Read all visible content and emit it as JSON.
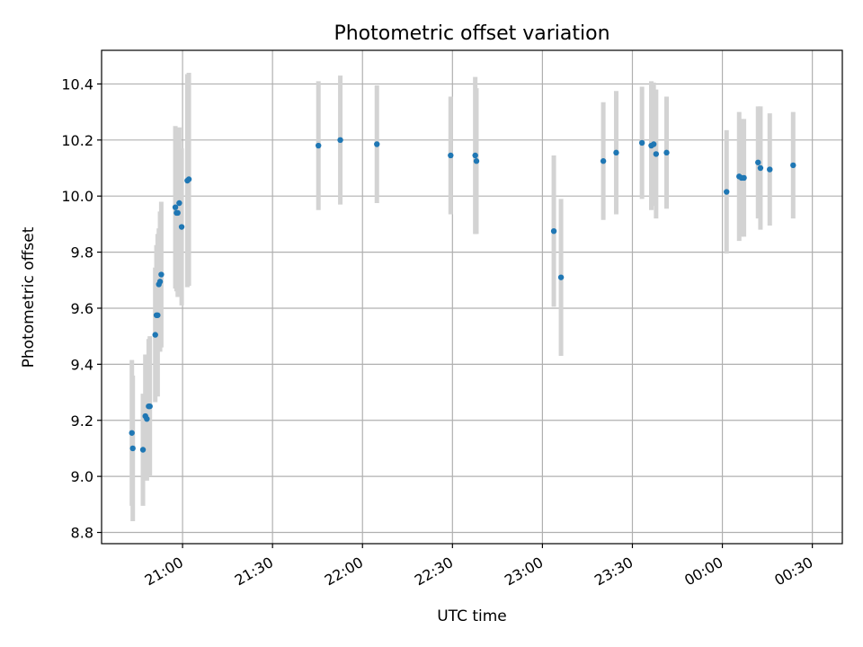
{
  "chart_data": {
    "type": "scatter",
    "title": "Photometric offset variation",
    "xlabel": "UTC time",
    "ylabel": "Photometric offset",
    "x_unit": "minutes_relative_to_21:00",
    "xlim": [
      -27,
      220
    ],
    "ylim": [
      8.76,
      10.52
    ],
    "grid": true,
    "x_ticks": [
      {
        "value": 0,
        "label": "21:00"
      },
      {
        "value": 30,
        "label": "21:30"
      },
      {
        "value": 60,
        "label": "22:00"
      },
      {
        "value": 90,
        "label": "22:30"
      },
      {
        "value": 120,
        "label": "23:00"
      },
      {
        "value": 150,
        "label": "23:30"
      },
      {
        "value": 180,
        "label": "00:00"
      },
      {
        "value": 210,
        "label": "00:30"
      }
    ],
    "y_ticks": [
      {
        "value": 8.8,
        "label": "8.8"
      },
      {
        "value": 9.0,
        "label": "9.0"
      },
      {
        "value": 9.2,
        "label": "9.2"
      },
      {
        "value": 9.4,
        "label": "9.4"
      },
      {
        "value": 9.6,
        "label": "9.6"
      },
      {
        "value": 9.8,
        "label": "9.8"
      },
      {
        "value": 10.0,
        "label": "10.0"
      },
      {
        "value": 10.2,
        "label": "10.2"
      },
      {
        "value": 10.4,
        "label": "10.4"
      }
    ],
    "colors": {
      "points": "#1f77b4",
      "errorbars": "#d3d3d3",
      "grid": "#b0b0b0"
    },
    "points": [
      {
        "x": -16.9,
        "y": 9.155,
        "err": 0.26
      },
      {
        "x": -16.6,
        "y": 9.1,
        "err": 0.26
      },
      {
        "x": -13.2,
        "y": 9.095,
        "err": 0.2
      },
      {
        "x": -12.4,
        "y": 9.215,
        "err": 0.22
      },
      {
        "x": -11.9,
        "y": 9.205,
        "err": 0.22
      },
      {
        "x": -11.3,
        "y": 9.25,
        "err": 0.24
      },
      {
        "x": -10.9,
        "y": 9.25,
        "err": 0.25
      },
      {
        "x": -9.1,
        "y": 9.505,
        "err": 0.24
      },
      {
        "x": -8.7,
        "y": 9.575,
        "err": 0.25
      },
      {
        "x": -8.3,
        "y": 9.575,
        "err": 0.29
      },
      {
        "x": -7.9,
        "y": 9.685,
        "err": 0.2
      },
      {
        "x": -7.5,
        "y": 9.695,
        "err": 0.25
      },
      {
        "x": -7.1,
        "y": 9.72,
        "err": 0.26
      },
      {
        "x": -2.4,
        "y": 9.96,
        "err": 0.29
      },
      {
        "x": -2.0,
        "y": 9.94,
        "err": 0.28
      },
      {
        "x": -1.6,
        "y": 9.94,
        "err": 0.3
      },
      {
        "x": -1.1,
        "y": 9.975,
        "err": 0.27
      },
      {
        "x": -0.3,
        "y": 9.89,
        "err": 0.28
      },
      {
        "x": 1.6,
        "y": 10.055,
        "err": 0.38
      },
      {
        "x": 2.1,
        "y": 10.06,
        "err": 0.38
      },
      {
        "x": 45.3,
        "y": 10.18,
        "err": 0.23
      },
      {
        "x": 52.6,
        "y": 10.2,
        "err": 0.23
      },
      {
        "x": 64.8,
        "y": 10.185,
        "err": 0.21
      },
      {
        "x": 89.4,
        "y": 10.145,
        "err": 0.21
      },
      {
        "x": 97.6,
        "y": 10.145,
        "err": 0.28
      },
      {
        "x": 98.0,
        "y": 10.125,
        "err": 0.26
      },
      {
        "x": 123.8,
        "y": 9.875,
        "err": 0.27
      },
      {
        "x": 126.2,
        "y": 9.71,
        "err": 0.28
      },
      {
        "x": 140.3,
        "y": 10.125,
        "err": 0.21
      },
      {
        "x": 144.6,
        "y": 10.155,
        "err": 0.22
      },
      {
        "x": 153.2,
        "y": 10.19,
        "err": 0.2
      },
      {
        "x": 156.3,
        "y": 10.18,
        "err": 0.23
      },
      {
        "x": 157.1,
        "y": 10.185,
        "err": 0.22
      },
      {
        "x": 157.9,
        "y": 10.15,
        "err": 0.23
      },
      {
        "x": 161.4,
        "y": 10.155,
        "err": 0.2
      },
      {
        "x": 181.4,
        "y": 10.015,
        "err": 0.22
      },
      {
        "x": 185.6,
        "y": 10.07,
        "err": 0.23
      },
      {
        "x": 186.4,
        "y": 10.065,
        "err": 0.21
      },
      {
        "x": 187.2,
        "y": 10.065,
        "err": 0.21
      },
      {
        "x": 191.9,
        "y": 10.12,
        "err": 0.2
      },
      {
        "x": 192.7,
        "y": 10.1,
        "err": 0.22
      },
      {
        "x": 195.8,
        "y": 10.095,
        "err": 0.2
      },
      {
        "x": 203.6,
        "y": 10.11,
        "err": 0.19
      }
    ]
  }
}
